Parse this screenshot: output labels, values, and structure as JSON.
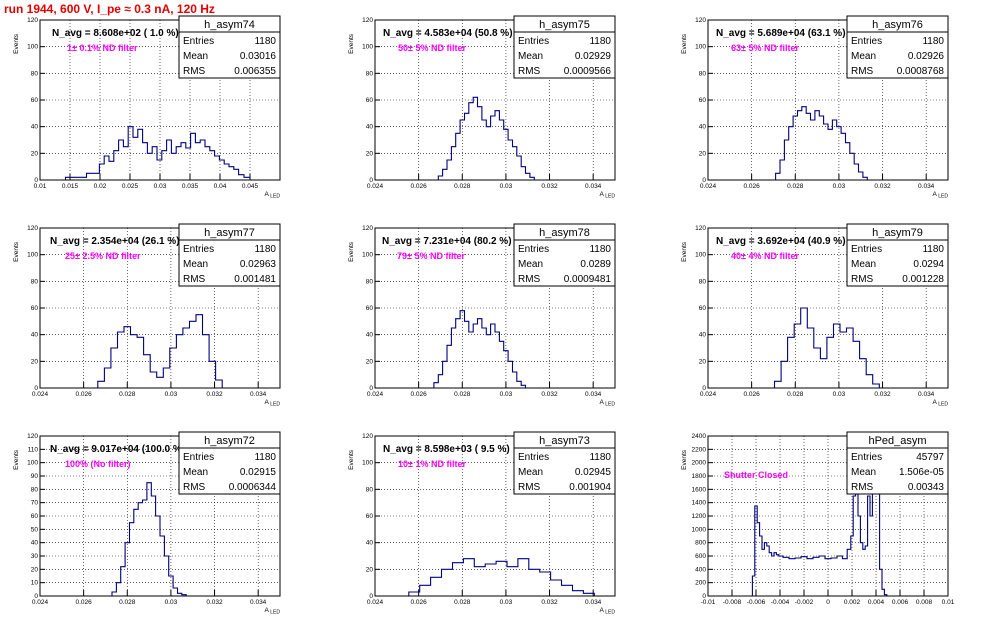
{
  "page": {
    "title": "run 1944,   600 V, I_pe ≈ 0.3 nA, 120 Hz"
  },
  "chart_data": [
    {
      "type": "bar",
      "name": "h_asym74",
      "title": "N_avg = 8.608e+02 ( 1.0 %)",
      "annotation": "1± 0.1% ND filter",
      "xlabel": "A_LED",
      "ylabel": "Events",
      "xlim": [
        0.01,
        0.05
      ],
      "ylim": [
        0,
        120
      ],
      "xticks": [
        "0.01",
        "0.015",
        "0.02",
        "0.025",
        "0.03",
        "0.035",
        "0.04",
        "0.045"
      ],
      "xtick_values": [
        0.01,
        0.015,
        0.02,
        0.025,
        0.03,
        0.035,
        0.04,
        0.045
      ],
      "yticks": [
        0,
        20,
        40,
        60,
        80,
        100,
        120
      ],
      "stats": [
        [
          "Entries",
          "1180"
        ],
        [
          "Mean",
          "0.03016"
        ],
        [
          "RMS",
          "0.006355"
        ]
      ],
      "x": [
        0.016,
        0.0195,
        0.0203,
        0.0211,
        0.0219,
        0.0227,
        0.0235,
        0.0243,
        0.0251,
        0.0259,
        0.0267,
        0.0275,
        0.0283,
        0.0291,
        0.0299,
        0.0307,
        0.0315,
        0.0323,
        0.0331,
        0.0339,
        0.0347,
        0.0355,
        0.0363,
        0.0371,
        0.0379,
        0.0387,
        0.0395,
        0.0403,
        0.0411,
        0.0419,
        0.0427,
        0.0435,
        0.0445
      ],
      "values": [
        2,
        5,
        12,
        18,
        14,
        22,
        30,
        25,
        40,
        32,
        38,
        28,
        20,
        25,
        15,
        22,
        30,
        20,
        25,
        28,
        24,
        35,
        28,
        30,
        25,
        22,
        18,
        15,
        12,
        10,
        8,
        4,
        2
      ]
    },
    {
      "type": "bar",
      "name": "h_asym75",
      "title": "N_avg = 4.583e+04 (50.8 %)",
      "annotation": "50± 5% ND filter",
      "xlabel": "A_LED",
      "ylabel": "Events",
      "xlim": [
        0.024,
        0.035
      ],
      "ylim": [
        0,
        120
      ],
      "xticks": [
        "0.024",
        "0.026",
        "0.028",
        "0.03",
        "0.032",
        "0.034"
      ],
      "xtick_values": [
        0.024,
        0.026,
        0.028,
        0.03,
        0.032,
        0.034
      ],
      "yticks": [
        0,
        20,
        40,
        60,
        80,
        100,
        120
      ],
      "stats": [
        [
          "Entries",
          "1180"
        ],
        [
          "Mean",
          "0.02929"
        ],
        [
          "RMS",
          "0.0009566"
        ]
      ],
      "x": [
        0.027,
        0.0272,
        0.0274,
        0.0276,
        0.0278,
        0.028,
        0.0282,
        0.0284,
        0.0286,
        0.0288,
        0.029,
        0.0292,
        0.0294,
        0.0296,
        0.0298,
        0.03,
        0.0302,
        0.0304,
        0.0306,
        0.0308,
        0.031,
        0.0312
      ],
      "values": [
        3,
        8,
        15,
        25,
        35,
        45,
        50,
        58,
        62,
        55,
        45,
        40,
        48,
        52,
        45,
        38,
        30,
        25,
        18,
        10,
        5,
        2
      ]
    },
    {
      "type": "bar",
      "name": "h_asym76",
      "title": "N_avg = 5.689e+04 (63.1 %)",
      "annotation": "63± 5% ND filter",
      "xlabel": "A_LED",
      "ylabel": "Events",
      "xlim": [
        0.024,
        0.035
      ],
      "ylim": [
        0,
        120
      ],
      "xticks": [
        "0.024",
        "0.026",
        "0.028",
        "0.03",
        "0.032",
        "0.034"
      ],
      "xtick_values": [
        0.024,
        0.026,
        0.028,
        0.03,
        0.032,
        0.034
      ],
      "yticks": [
        0,
        20,
        40,
        60,
        80,
        100,
        120
      ],
      "stats": [
        [
          "Entries",
          "1180"
        ],
        [
          "Mean",
          "0.02926"
        ],
        [
          "RMS",
          "0.0008768"
        ]
      ],
      "x": [
        0.0272,
        0.0274,
        0.0276,
        0.0278,
        0.028,
        0.0282,
        0.0284,
        0.0286,
        0.0288,
        0.029,
        0.0292,
        0.0294,
        0.0296,
        0.0298,
        0.03,
        0.0302,
        0.0304,
        0.0306,
        0.0308,
        0.031,
        0.0312
      ],
      "values": [
        5,
        15,
        30,
        40,
        48,
        52,
        55,
        50,
        45,
        52,
        48,
        42,
        38,
        45,
        40,
        35,
        28,
        20,
        12,
        6,
        2
      ]
    },
    {
      "type": "bar",
      "name": "h_asym77",
      "title": "N_avg = 2.354e+04 (26.1 %)",
      "annotation": "25± 2.5% ND filter",
      "xlabel": "A_LED",
      "ylabel": "Events",
      "xlim": [
        0.024,
        0.035
      ],
      "ylim": [
        0,
        120
      ],
      "xticks": [
        "0.024",
        "0.026",
        "0.028",
        "0.03",
        "0.032",
        "0.034"
      ],
      "xtick_values": [
        0.024,
        0.026,
        0.028,
        0.03,
        0.032,
        0.034
      ],
      "yticks": [
        0,
        20,
        40,
        60,
        80,
        100,
        120
      ],
      "stats": [
        [
          "Entries",
          "1180"
        ],
        [
          "Mean",
          "0.02963"
        ],
        [
          "RMS",
          "0.001481"
        ]
      ],
      "x": [
        0.0268,
        0.0271,
        0.0274,
        0.0277,
        0.028,
        0.0283,
        0.0286,
        0.0289,
        0.0292,
        0.0295,
        0.0298,
        0.0301,
        0.0304,
        0.0307,
        0.031,
        0.0313,
        0.0316,
        0.0319,
        0.0322
      ],
      "values": [
        5,
        15,
        30,
        42,
        46,
        40,
        38,
        25,
        12,
        8,
        15,
        30,
        40,
        45,
        50,
        55,
        40,
        20,
        6
      ]
    },
    {
      "type": "bar",
      "name": "h_asym78",
      "title": "N_avg = 7.231e+04 (80.2 %)",
      "annotation": "79± 5% ND filter",
      "xlabel": "A_LED",
      "ylabel": "Events",
      "xlim": [
        0.024,
        0.035
      ],
      "ylim": [
        0,
        120
      ],
      "xticks": [
        "0.024",
        "0.026",
        "0.028",
        "0.03",
        "0.032",
        "0.034"
      ],
      "xtick_values": [
        0.024,
        0.026,
        0.028,
        0.03,
        0.032,
        0.034
      ],
      "yticks": [
        0,
        20,
        40,
        60,
        80,
        100,
        120
      ],
      "stats": [
        [
          "Entries",
          "1180"
        ],
        [
          "Mean",
          "0.0289"
        ],
        [
          "RMS",
          "0.0009481"
        ]
      ],
      "x": [
        0.0268,
        0.027,
        0.0272,
        0.0274,
        0.0276,
        0.0278,
        0.028,
        0.0282,
        0.0284,
        0.0286,
        0.0288,
        0.029,
        0.0292,
        0.0294,
        0.0296,
        0.0298,
        0.03,
        0.0302,
        0.0304,
        0.0306,
        0.0308
      ],
      "values": [
        4,
        10,
        20,
        32,
        45,
        52,
        58,
        50,
        42,
        48,
        52,
        45,
        40,
        48,
        42,
        35,
        28,
        20,
        12,
        5,
        2
      ]
    },
    {
      "type": "bar",
      "name": "h_asym79",
      "title": "N_avg = 3.692e+04 (40.9 %)",
      "annotation": "40± 4% ND filter",
      "xlabel": "A_LED",
      "ylabel": "Events",
      "xlim": [
        0.024,
        0.035
      ],
      "ylim": [
        0,
        120
      ],
      "xticks": [
        "0.024",
        "0.026",
        "0.028",
        "0.03",
        "0.032",
        "0.034"
      ],
      "xtick_values": [
        0.024,
        0.026,
        0.028,
        0.03,
        0.032,
        0.034
      ],
      "yticks": [
        0,
        20,
        40,
        60,
        80,
        100,
        120
      ],
      "stats": [
        [
          "Entries",
          "1180"
        ],
        [
          "Mean",
          "0.0294"
        ],
        [
          "RMS",
          "0.001228"
        ]
      ],
      "x": [
        0.0272,
        0.0275,
        0.0278,
        0.0281,
        0.0284,
        0.0287,
        0.029,
        0.0293,
        0.0296,
        0.0299,
        0.0302,
        0.0305,
        0.0308,
        0.0311,
        0.0314,
        0.0317
      ],
      "values": [
        5,
        20,
        38,
        48,
        60,
        45,
        30,
        22,
        38,
        48,
        42,
        45,
        35,
        22,
        10,
        3
      ]
    },
    {
      "type": "bar",
      "name": "h_asym72",
      "title": "N_avg = 9.017e+04 (100.0 %)",
      "annotation": "100% (No filter)",
      "xlabel": "A_LED",
      "ylabel": "Events",
      "xlim": [
        0.024,
        0.035
      ],
      "ylim": [
        0,
        120
      ],
      "xticks": [
        "0.024",
        "0.026",
        "0.028",
        "0.03",
        "0.032",
        "0.034"
      ],
      "xtick_values": [
        0.024,
        0.026,
        0.028,
        0.03,
        0.032,
        0.034
      ],
      "yticks": [
        0,
        10,
        20,
        30,
        40,
        50,
        60,
        70,
        80,
        90,
        100,
        110,
        120
      ],
      "stats": [
        [
          "Entries",
          "1180"
        ],
        [
          "Mean",
          "0.02915"
        ],
        [
          "RMS",
          "0.0006344"
        ]
      ],
      "x": [
        0.0274,
        0.0276,
        0.0278,
        0.028,
        0.0282,
        0.0284,
        0.0286,
        0.0288,
        0.029,
        0.0292,
        0.0294,
        0.0296,
        0.0298,
        0.03,
        0.0302,
        0.0304,
        0.0306
      ],
      "values": [
        3,
        10,
        22,
        40,
        55,
        65,
        70,
        72,
        85,
        75,
        60,
        45,
        30,
        15,
        6,
        2,
        1
      ]
    },
    {
      "type": "bar",
      "name": "h_asym73",
      "title": "N_avg = 8.598e+03 ( 9.5 %)",
      "annotation": "10± 1% ND filter",
      "xlabel": "A_LED",
      "ylabel": "Events",
      "xlim": [
        0.024,
        0.035
      ],
      "ylim": [
        0,
        120
      ],
      "xticks": [
        "0.024",
        "0.026",
        "0.028",
        "0.03",
        "0.032",
        "0.034"
      ],
      "xtick_values": [
        0.024,
        0.026,
        0.028,
        0.03,
        0.032,
        0.034
      ],
      "yticks": [
        0,
        20,
        40,
        60,
        80,
        100,
        120
      ],
      "stats": [
        [
          "Entries",
          "1180"
        ],
        [
          "Mean",
          "0.02945"
        ],
        [
          "RMS",
          "0.001904"
        ]
      ],
      "x": [
        0.0258,
        0.0263,
        0.0268,
        0.0273,
        0.0278,
        0.0283,
        0.0288,
        0.0293,
        0.0298,
        0.0303,
        0.0308,
        0.0313,
        0.0318,
        0.0323,
        0.0328,
        0.0333,
        0.0338
      ],
      "values": [
        3,
        8,
        14,
        20,
        25,
        28,
        22,
        24,
        26,
        22,
        28,
        20,
        18,
        12,
        8,
        4,
        2
      ]
    },
    {
      "type": "bar",
      "name": "hPed_asym",
      "title": "",
      "annotation": "Shutter Closed",
      "xlabel": "",
      "ylabel": "Events",
      "xlim": [
        -0.01,
        0.01
      ],
      "ylim": [
        0,
        2400
      ],
      "xticks": [
        "-0.01",
        "-0.008",
        "-0.006",
        "-0.004",
        "-0.002",
        "0",
        "0.002",
        "0.004",
        "0.006",
        "0.008",
        "0.01"
      ],
      "xtick_values": [
        -0.01,
        -0.008,
        -0.006,
        -0.004,
        -0.002,
        0,
        0.002,
        0.004,
        0.006,
        0.008,
        0.01
      ],
      "yticks": [
        0,
        200,
        400,
        600,
        800,
        1000,
        1200,
        1400,
        1600,
        1800,
        2000,
        2200,
        2400
      ],
      "stats": [
        [
          "Entries",
          "45797"
        ],
        [
          "Mean",
          "1.506e-05"
        ],
        [
          "RMS",
          "0.00343"
        ]
      ],
      "x": [
        -0.0062,
        -0.006,
        -0.0058,
        -0.0056,
        -0.0054,
        -0.0052,
        -0.005,
        -0.0048,
        -0.0046,
        -0.0044,
        -0.0042,
        -0.004,
        -0.0035,
        -0.003,
        -0.0025,
        -0.002,
        -0.0015,
        -0.001,
        -0.0005,
        0.0,
        0.0005,
        0.001,
        0.0014,
        0.0018,
        0.002,
        0.0022,
        0.0024,
        0.0026,
        0.0028,
        0.003,
        0.0032,
        0.0034,
        0.0036,
        0.0038,
        0.004,
        0.0042,
        0.0044,
        0.0046,
        0.0048
      ],
      "values": [
        300,
        1350,
        1100,
        900,
        700,
        800,
        750,
        650,
        600,
        650,
        620,
        600,
        580,
        560,
        570,
        590,
        560,
        580,
        600,
        560,
        570,
        600,
        560,
        700,
        900,
        1500,
        1800,
        1200,
        800,
        700,
        750,
        1500,
        1200,
        1800,
        2300,
        2200,
        400,
        100,
        20
      ]
    }
  ]
}
